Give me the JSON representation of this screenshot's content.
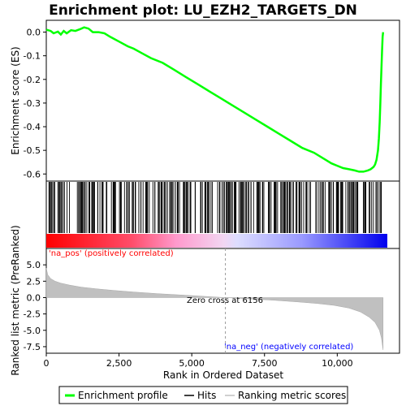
{
  "chart_data": {
    "type": "line",
    "title": "Enrichment plot: LU_EZH2_TARGETS_DN",
    "xlabel": "Rank in Ordered Dataset",
    "top_panel": {
      "ylabel": "Enrichment score (ES)",
      "ylim": [
        -0.63,
        0.05
      ],
      "yticks": [
        "0.0",
        "-0.1",
        "-0.2",
        "-0.3",
        "-0.4",
        "-0.5",
        "-0.6"
      ],
      "ytick_values": [
        0.0,
        -0.1,
        -0.2,
        -0.3,
        -0.4,
        -0.5,
        -0.6
      ],
      "series": [
        {
          "name": "Enrichment profile",
          "color": "#00ff00",
          "x": [
            0,
            150,
            250,
            400,
            500,
            600,
            700,
            850,
            1000,
            1150,
            1300,
            1450,
            1600,
            1800,
            2000,
            2200,
            2500,
            2800,
            3000,
            3300,
            3600,
            4000,
            4400,
            4800,
            5200,
            5600,
            6000,
            6400,
            6800,
            7200,
            7600,
            8000,
            8400,
            8800,
            9200,
            9600,
            9800,
            10000,
            10200,
            10400,
            10600,
            10750,
            10900,
            11050,
            11150,
            11250,
            11300,
            11350,
            11400,
            11430,
            11460,
            11480,
            11500,
            11520,
            11540,
            11560,
            11575
          ],
          "y": [
            0.01,
            0.005,
            -0.005,
            0.002,
            -0.01,
            0.005,
            -0.005,
            0.008,
            0.005,
            0.012,
            0.02,
            0.015,
            0.0,
            0.0,
            -0.005,
            -0.02,
            -0.04,
            -0.06,
            -0.07,
            -0.09,
            -0.11,
            -0.13,
            -0.16,
            -0.19,
            -0.22,
            -0.25,
            -0.28,
            -0.31,
            -0.34,
            -0.37,
            -0.4,
            -0.43,
            -0.46,
            -0.49,
            -0.51,
            -0.54,
            -0.555,
            -0.565,
            -0.575,
            -0.58,
            -0.585,
            -0.59,
            -0.59,
            -0.585,
            -0.58,
            -0.57,
            -0.56,
            -0.54,
            -0.5,
            -0.45,
            -0.38,
            -0.3,
            -0.22,
            -0.15,
            -0.08,
            -0.02,
            0.0
          ]
        }
      ]
    },
    "hits_panel": {
      "label": "Hits",
      "hit_clusters": [
        [
          50,
          900
        ],
        [
          1000,
          2400
        ],
        [
          2500,
          4600
        ],
        [
          4700,
          5200
        ],
        [
          5300,
          7500
        ],
        [
          7600,
          9100
        ],
        [
          9200,
          11600
        ]
      ]
    },
    "bottom_panel": {
      "ylabel": "Ranked list metric (PreRanked)",
      "ylim": [
        -8.5,
        7.5
      ],
      "yticks": [
        "5.0",
        "2.5",
        "0.0",
        "-2.5",
        "-5.0",
        "-7.5"
      ],
      "ytick_values": [
        5.0,
        2.5,
        0.0,
        -2.5,
        -5.0,
        -7.5
      ],
      "series_name": "Ranking metric scores",
      "x": [
        0,
        50,
        150,
        300,
        500,
        800,
        1200,
        1700,
        2300,
        3000,
        3800,
        4600,
        5400,
        6156,
        7000,
        7800,
        8600,
        9300,
        9900,
        10400,
        10800,
        11100,
        11300,
        11450,
        11520,
        11560,
        11575
      ],
      "values": [
        4.5,
        3.5,
        2.9,
        2.5,
        2.2,
        1.9,
        1.6,
        1.35,
        1.1,
        0.85,
        0.6,
        0.4,
        0.2,
        0.0,
        -0.2,
        -0.4,
        -0.65,
        -0.9,
        -1.2,
        -1.6,
        -2.2,
        -3.0,
        -3.8,
        -5.0,
        -6.2,
        -7.5,
        -8.0
      ],
      "pos_label": "'na_pos' (positively correlated)",
      "neg_label": "'na_neg' (negatively correlated)",
      "zero_cross_label": "Zero cross at 6156",
      "zero_cross": 6156
    },
    "xlim": [
      0,
      12000
    ],
    "xticks": [
      "0",
      "2,500",
      "5,000",
      "7,500",
      "10,000"
    ],
    "xtick_values": [
      0,
      2500,
      5000,
      7500,
      10000
    ],
    "legend": {
      "placement": "bottom",
      "entries": [
        {
          "label": "Enrichment profile",
          "color": "#00ff00"
        },
        {
          "label": "Hits",
          "color": "#000000"
        },
        {
          "label": "Ranking metric scores",
          "color": "#c0c0c0"
        }
      ]
    },
    "colors": {
      "profile": "#00ff00",
      "metric_fill": "#c0c0c0",
      "pos_text": "#ff0000",
      "neg_text": "#0000ff"
    }
  }
}
